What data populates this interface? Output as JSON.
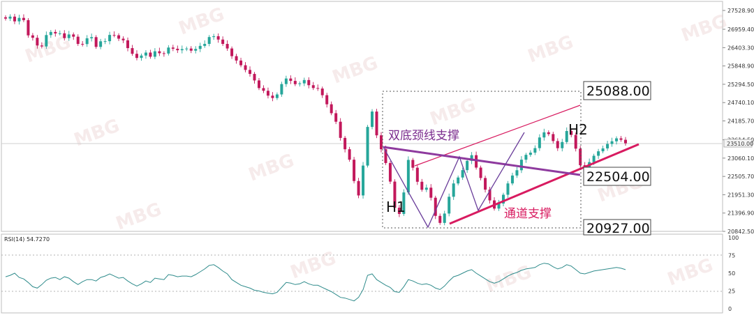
{
  "chart_data": [
    {
      "type": "candlestick",
      "price_axis": {
        "ticks": [
          "27528.90",
          "26959.40",
          "26403.30",
          "25848.90",
          "25294.50",
          "24740.10",
          "24185.70",
          "23614.50",
          "23060.10",
          "22505.70",
          "21951.30",
          "21396.90",
          "20842.50"
        ],
        "last_price_label": "23510.00",
        "ylim": [
          20842.5,
          27528.9
        ]
      },
      "closes": [
        27282,
        27342,
        27199,
        27304,
        27236,
        26775,
        26702,
        26469,
        26439,
        26784,
        26878,
        26833,
        26837,
        26692,
        26803,
        26735,
        26517,
        26511,
        26686,
        26721,
        26426,
        26595,
        26599,
        26788,
        26777,
        26675,
        26625,
        26389,
        26217,
        26091,
        26164,
        26254,
        26128,
        26293,
        26234,
        26225,
        26406,
        26370,
        26325,
        26359,
        26376,
        26311,
        26364,
        26456,
        26517,
        26724,
        26749,
        26648,
        26516,
        26378,
        26146,
        26013,
        25870,
        25729,
        25608,
        25411,
        25179,
        25098,
        24951,
        24878,
        24987,
        25301,
        25469,
        25397,
        25299,
        25322,
        25423,
        25267,
        25181,
        25165,
        24964,
        24689,
        24419,
        24161,
        23672,
        23328,
        23012,
        22366,
        21930,
        22834,
        24004,
        24469,
        23749,
        23329,
        22911,
        22349,
        21558,
        21371,
        22021,
        23005,
        22769,
        22344,
        22102,
        22165,
        21861,
        21311,
        21099,
        21382,
        21890,
        22293,
        22473,
        22696,
        22975,
        23148,
        22773,
        22458,
        22105,
        21780,
        21532,
        21685,
        21951,
        22294,
        22533,
        22693,
        23012,
        23159,
        23225,
        23362,
        23685,
        23840,
        23787,
        23576,
        23360,
        23547,
        23880,
        23761,
        23346,
        22845,
        22693,
        22938,
        23131,
        23266,
        23354,
        23487,
        23569,
        23658,
        23614,
        23510
      ]
    },
    {
      "type": "line",
      "title": "RSI(14) 54.7270",
      "y_ticks": [
        "100",
        "75",
        "50",
        "25",
        "0"
      ],
      "levels": [
        70,
        30
      ],
      "ylim": [
        0,
        100
      ],
      "values": [
        45,
        47,
        50,
        44,
        42,
        37,
        31,
        29,
        34,
        40,
        43,
        44,
        41,
        45,
        43,
        38,
        34,
        38,
        41,
        41,
        39,
        44,
        46,
        49,
        46,
        43,
        44,
        39,
        35,
        32,
        35,
        39,
        37,
        43,
        42,
        41,
        48,
        47,
        45,
        46,
        46,
        45,
        48,
        52,
        56,
        61,
        62,
        58,
        53,
        49,
        41,
        37,
        33,
        31,
        29,
        26,
        25,
        23,
        22,
        21,
        23,
        30,
        37,
        36,
        34,
        35,
        38,
        35,
        33,
        33,
        30,
        27,
        24,
        20,
        16,
        15,
        13,
        11,
        16,
        27,
        47,
        49,
        41,
        37,
        33,
        30,
        24,
        23,
        31,
        41,
        39,
        36,
        34,
        35,
        33,
        29,
        27,
        32,
        39,
        45,
        47,
        50,
        53,
        55,
        50,
        46,
        42,
        38,
        36,
        38,
        42,
        46,
        49,
        51,
        54,
        56,
        57,
        58,
        62,
        64,
        63,
        59,
        56,
        58,
        62,
        60,
        55,
        50,
        49,
        51,
        53,
        54,
        55,
        56,
        57,
        58,
        57,
        55
      ]
    }
  ],
  "annotations": {
    "neckline_label": "双底颈线支撑",
    "channel_label": "通道支撑",
    "h1_label": "H1",
    "h2_label": "H2",
    "level_25088": "25088.00",
    "level_22504": "22504.00",
    "level_20927": "20927.00"
  },
  "watermark_text": "MBG",
  "colors": {
    "bull": "#26a69a",
    "bear": "#c2185b",
    "neckline": "#8e3a9e",
    "channel": "#d81b60",
    "rsi_line": "#2e8b8b"
  }
}
